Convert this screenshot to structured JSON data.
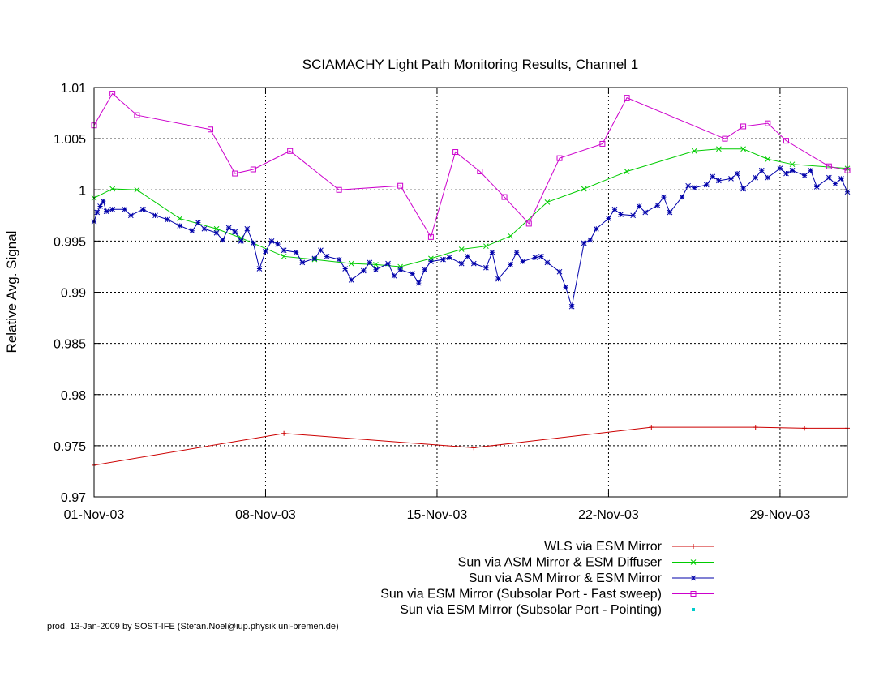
{
  "chart_data": {
    "type": "line",
    "title": "SCIAMACHY Light Path Monitoring Results, Channel 1",
    "ylabel": "Relative Avg. Signal",
    "xlabel": "",
    "ylim": [
      0.97,
      1.01
    ],
    "xlim": [
      "2003-11-01",
      "2003-12-01 18:00"
    ],
    "xticks": [
      {
        "value": "2003-11-01",
        "label": "01-Nov-03"
      },
      {
        "value": "2003-11-08",
        "label": "08-Nov-03"
      },
      {
        "value": "2003-11-15",
        "label": "15-Nov-03"
      },
      {
        "value": "2003-11-22",
        "label": "22-Nov-03"
      },
      {
        "value": "2003-11-29",
        "label": "29-Nov-03"
      }
    ],
    "yticks": [
      {
        "value": 1.01,
        "label": "1.01"
      },
      {
        "value": 1.005,
        "label": "1.005"
      },
      {
        "value": 1.0,
        "label": "1"
      },
      {
        "value": 0.995,
        "label": "0.995"
      },
      {
        "value": 0.99,
        "label": "0.99"
      },
      {
        "value": 0.985,
        "label": "0.985"
      },
      {
        "value": 0.98,
        "label": "0.98"
      },
      {
        "value": 0.975,
        "label": "0.975"
      },
      {
        "value": 0.97,
        "label": "0.97"
      }
    ],
    "grid": true,
    "legend_position": "bottom-right",
    "series": [
      {
        "name": "WLS via ESM Mirror",
        "color": "#cc0000",
        "marker": "plus",
        "points": [
          [
            "2003-11-01",
            0.9731
          ],
          [
            "2003-11-08 18:00",
            0.9762
          ],
          [
            "2003-11-16 12:00",
            0.9748
          ],
          [
            "2003-11-23 18:00",
            0.9768
          ],
          [
            "2003-11-28",
            0.9768
          ],
          [
            "2003-11-30",
            0.9767
          ],
          [
            "2003-12-01 18:00",
            0.9767
          ]
        ]
      },
      {
        "name": "Sun via ASM Mirror & ESM Diffuser",
        "color": "#00cc00",
        "marker": "cross",
        "points": [
          [
            "2003-11-01",
            0.9992
          ],
          [
            "2003-11-01 18:00",
            1.0001
          ],
          [
            "2003-11-02 18:00",
            1.0
          ],
          [
            "2003-11-04 12:00",
            0.9972
          ],
          [
            "2003-11-06",
            0.9962
          ],
          [
            "2003-11-07",
            0.9953
          ],
          [
            "2003-11-08 18:00",
            0.9935
          ],
          [
            "2003-11-10",
            0.9932
          ],
          [
            "2003-11-11 12:00",
            0.9928
          ],
          [
            "2003-11-12 12:00",
            0.9927
          ],
          [
            "2003-11-13 12:00",
            0.9925
          ],
          [
            "2003-11-14 18:00",
            0.9933
          ],
          [
            "2003-11-16",
            0.9942
          ],
          [
            "2003-11-17",
            0.9945
          ],
          [
            "2003-11-18",
            0.9955
          ],
          [
            "2003-11-19 12:00",
            0.9988
          ],
          [
            "2003-11-21",
            1.0001
          ],
          [
            "2003-11-22 18:00",
            1.0018
          ],
          [
            "2003-11-25 12:00",
            1.0038
          ],
          [
            "2003-11-26 12:00",
            1.004
          ],
          [
            "2003-11-27 12:00",
            1.004
          ],
          [
            "2003-11-28 12:00",
            1.003
          ],
          [
            "2003-11-29 12:00",
            1.0025
          ],
          [
            "2003-12-01 18:00",
            1.0021
          ]
        ]
      },
      {
        "name": "Sun via ASM Mirror & ESM Mirror",
        "color": "#0000aa",
        "marker": "star",
        "points": [
          [
            "2003-11-01",
            0.9969
          ],
          [
            "2003-11-01 03:00",
            0.9978
          ],
          [
            "2003-11-01 06:00",
            0.9984
          ],
          [
            "2003-11-01 09:00",
            0.9989
          ],
          [
            "2003-11-01 12:00",
            0.9979
          ],
          [
            "2003-11-01 18:00",
            0.9981
          ],
          [
            "2003-11-02 06:00",
            0.9981
          ],
          [
            "2003-11-02 12:00",
            0.9975
          ],
          [
            "2003-11-03",
            0.9981
          ],
          [
            "2003-11-03 12:00",
            0.9975
          ],
          [
            "2003-11-04",
            0.9971
          ],
          [
            "2003-11-04 12:00",
            0.9965
          ],
          [
            "2003-11-05",
            0.996
          ],
          [
            "2003-11-05 06:00",
            0.9968
          ],
          [
            "2003-11-05 12:00",
            0.9962
          ],
          [
            "2003-11-06",
            0.9958
          ],
          [
            "2003-11-06 06:00",
            0.9951
          ],
          [
            "2003-11-06 12:00",
            0.9963
          ],
          [
            "2003-11-06 18:00",
            0.9959
          ],
          [
            "2003-11-07",
            0.995
          ],
          [
            "2003-11-07 06:00",
            0.9962
          ],
          [
            "2003-11-07 12:00",
            0.9948
          ],
          [
            "2003-11-07 18:00",
            0.9923
          ],
          [
            "2003-11-08",
            0.994
          ],
          [
            "2003-11-08 06:00",
            0.995
          ],
          [
            "2003-11-08 12:00",
            0.9947
          ],
          [
            "2003-11-08 18:00",
            0.9941
          ],
          [
            "2003-11-09 06:00",
            0.9939
          ],
          [
            "2003-11-09 12:00",
            0.9929
          ],
          [
            "2003-11-10",
            0.9933
          ],
          [
            "2003-11-10 06:00",
            0.9941
          ],
          [
            "2003-11-10 12:00",
            0.9935
          ],
          [
            "2003-11-11",
            0.9932
          ],
          [
            "2003-11-11 06:00",
            0.9923
          ],
          [
            "2003-11-11 12:00",
            0.9912
          ],
          [
            "2003-11-12",
            0.9921
          ],
          [
            "2003-11-12 06:00",
            0.9929
          ],
          [
            "2003-11-12 12:00",
            0.9922
          ],
          [
            "2003-11-13",
            0.9928
          ],
          [
            "2003-11-13 06:00",
            0.9916
          ],
          [
            "2003-11-13 12:00",
            0.9922
          ],
          [
            "2003-11-14",
            0.9918
          ],
          [
            "2003-11-14 06:00",
            0.9909
          ],
          [
            "2003-11-14 12:00",
            0.9922
          ],
          [
            "2003-11-14 18:00",
            0.993
          ],
          [
            "2003-11-15 06:00",
            0.9932
          ],
          [
            "2003-11-15 12:00",
            0.9934
          ],
          [
            "2003-11-16",
            0.9928
          ],
          [
            "2003-11-16 06:00",
            0.9935
          ],
          [
            "2003-11-16 12:00",
            0.9928
          ],
          [
            "2003-11-17",
            0.9924
          ],
          [
            "2003-11-17 06:00",
            0.9939
          ],
          [
            "2003-11-17 12:00",
            0.9913
          ],
          [
            "2003-11-18",
            0.9927
          ],
          [
            "2003-11-18 06:00",
            0.9939
          ],
          [
            "2003-11-18 12:00",
            0.993
          ],
          [
            "2003-11-19",
            0.9934
          ],
          [
            "2003-11-19 06:00",
            0.9935
          ],
          [
            "2003-11-19 12:00",
            0.9929
          ],
          [
            "2003-11-20",
            0.992
          ],
          [
            "2003-11-20 06:00",
            0.9905
          ],
          [
            "2003-11-20 12:00",
            0.9886
          ],
          [
            "2003-11-21",
            0.9948
          ],
          [
            "2003-11-21 06:00",
            0.9951
          ],
          [
            "2003-11-21 12:00",
            0.9962
          ],
          [
            "2003-11-22",
            0.9972
          ],
          [
            "2003-11-22 06:00",
            0.9981
          ],
          [
            "2003-11-22 12:00",
            0.9976
          ],
          [
            "2003-11-23",
            0.9975
          ],
          [
            "2003-11-23 06:00",
            0.9984
          ],
          [
            "2003-11-23 12:00",
            0.9978
          ],
          [
            "2003-11-24",
            0.9985
          ],
          [
            "2003-11-24 06:00",
            0.9993
          ],
          [
            "2003-11-24 12:00",
            0.9978
          ],
          [
            "2003-11-25",
            0.9993
          ],
          [
            "2003-11-25 06:00",
            1.0004
          ],
          [
            "2003-11-25 12:00",
            1.0002
          ],
          [
            "2003-11-26",
            1.0005
          ],
          [
            "2003-11-26 06:00",
            1.0013
          ],
          [
            "2003-11-26 12:00",
            1.0009
          ],
          [
            "2003-11-27",
            1.0011
          ],
          [
            "2003-11-27 06:00",
            1.0016
          ],
          [
            "2003-11-27 12:00",
            1.0001
          ],
          [
            "2003-11-28",
            1.0012
          ],
          [
            "2003-11-28 06:00",
            1.0019
          ],
          [
            "2003-11-28 12:00",
            1.0012
          ],
          [
            "2003-11-29",
            1.0021
          ],
          [
            "2003-11-29 06:00",
            1.0016
          ],
          [
            "2003-11-29 12:00",
            1.0019
          ],
          [
            "2003-11-30",
            1.0014
          ],
          [
            "2003-11-30 06:00",
            1.0019
          ],
          [
            "2003-11-30 12:00",
            1.0003
          ],
          [
            "2003-12-01",
            1.0012
          ],
          [
            "2003-12-01 06:00",
            1.0006
          ],
          [
            "2003-12-01 12:00",
            1.0011
          ],
          [
            "2003-12-01 18:00",
            0.9998
          ]
        ]
      },
      {
        "name": "Sun via ESM Mirror (Subsolar Port - Fast sweep)",
        "color": "#cc00cc",
        "marker": "square",
        "points": [
          [
            "2003-11-01",
            1.0063
          ],
          [
            "2003-11-01 18:00",
            1.0094
          ],
          [
            "2003-11-02 18:00",
            1.0073
          ],
          [
            "2003-11-05 18:00",
            1.0059
          ],
          [
            "2003-11-06 18:00",
            1.0016
          ],
          [
            "2003-11-07 12:00",
            1.002
          ],
          [
            "2003-11-09",
            1.0038
          ],
          [
            "2003-11-11",
            1.0
          ],
          [
            "2003-11-13 12:00",
            1.0004
          ],
          [
            "2003-11-14 18:00",
            0.9954
          ],
          [
            "2003-11-15 18:00",
            1.0037
          ],
          [
            "2003-11-16 18:00",
            1.0018
          ],
          [
            "2003-11-17 18:00",
            0.9993
          ],
          [
            "2003-11-18 18:00",
            0.9967
          ],
          [
            "2003-11-20",
            1.0031
          ],
          [
            "2003-11-21 18:00",
            1.0045
          ],
          [
            "2003-11-22 18:00",
            1.009
          ],
          [
            "2003-11-26 18:00",
            1.005
          ],
          [
            "2003-11-27 12:00",
            1.0062
          ],
          [
            "2003-11-28 12:00",
            1.0065
          ],
          [
            "2003-11-29 06:00",
            1.0048
          ],
          [
            "2003-12-01",
            1.0023
          ],
          [
            "2003-12-01 18:00",
            1.0019
          ]
        ]
      },
      {
        "name": "Sun via ESM Mirror (Subsolar Port - Pointing)",
        "color": "#00cccc",
        "marker": "dot",
        "points": []
      }
    ],
    "footer": "prod. 13-Jan-2009 by SOST-IFE (Stefan.Noel@iup.physik.uni-bremen.de)"
  }
}
